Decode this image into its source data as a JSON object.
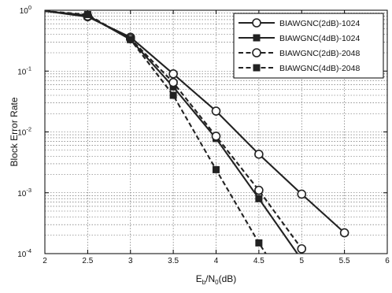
{
  "chart_data": {
    "type": "line",
    "title": "",
    "xlabel": "E_b/N_0(dB)",
    "xlabel_parts": {
      "main": "E",
      "sub1": "b",
      "mid": "/N",
      "sub2": "0",
      "unit": "(dB)"
    },
    "ylabel": "Block Error Rate",
    "xlim": [
      2,
      6
    ],
    "ylim": [
      0.0001,
      1
    ],
    "yscale": "log",
    "grid": true,
    "legend_position": "top-right",
    "x_ticks": [
      2,
      2.5,
      3,
      3.5,
      4,
      4.5,
      5,
      5.5,
      6
    ],
    "x_tick_labels": [
      "2",
      "2.5",
      "3",
      "3.5",
      "4",
      "4.5",
      "5",
      "5.5",
      "6"
    ],
    "y_ticks": [
      {
        "base": "10",
        "exp": "0",
        "value": 1
      },
      {
        "base": "10",
        "exp": "-1",
        "value": 0.1
      },
      {
        "base": "10",
        "exp": "-2",
        "value": 0.01
      },
      {
        "base": "10",
        "exp": "-3",
        "value": 0.001
      },
      {
        "base": "10",
        "exp": "-4",
        "value": 0.0001
      }
    ],
    "series": [
      {
        "name": "BIAWGNC(2dB)-1024",
        "marker": "circle",
        "dashed": false,
        "x": [
          2,
          2.5,
          3,
          3.5,
          4,
          4.5,
          5,
          5.5
        ],
        "y": [
          0.97,
          0.78,
          0.36,
          0.09,
          0.022,
          0.0043,
          0.00095,
          0.00022
        ]
      },
      {
        "name": "BIAWGNC(4dB)-1024",
        "marker": "square",
        "dashed": false,
        "x": [
          2,
          2.5,
          3,
          3.5,
          4,
          4.5,
          4.95
        ],
        "y": [
          0.97,
          0.82,
          0.33,
          0.055,
          0.0078,
          0.0008,
          0.0001
        ]
      },
      {
        "name": "BIAWGNC(2dB)-2048",
        "marker": "circle",
        "dashed": true,
        "x": [
          2,
          2.5,
          3,
          3.5,
          4,
          4.5,
          5
        ],
        "y": [
          0.97,
          0.8,
          0.34,
          0.065,
          0.0085,
          0.0011,
          0.00012
        ]
      },
      {
        "name": "BIAWGNC(4dB)-2048",
        "marker": "square",
        "dashed": true,
        "x": [
          2,
          2.5,
          3,
          3.5,
          4,
          4.5,
          4.58
        ],
        "y": [
          0.97,
          0.85,
          0.33,
          0.04,
          0.0024,
          0.00015,
          0.0001
        ]
      }
    ]
  }
}
